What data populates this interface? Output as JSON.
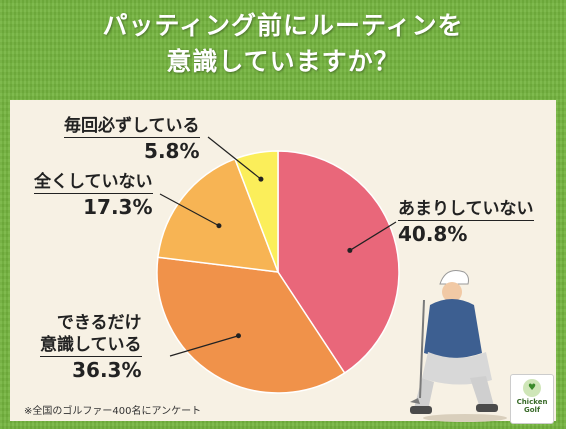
{
  "title_lines": [
    "パッティング前にルーティンを",
    "意識していますか？"
  ],
  "footnote": "※全国のゴルファー400名にアンケート",
  "logo": {
    "icon": "heart-sprout-icon",
    "line1": "Chicken",
    "line2": "Golf"
  },
  "chart_data": {
    "type": "pie",
    "start": "12 o'clock, clockwise",
    "slices": [
      {
        "label": "あまりしていない",
        "value": 40.8,
        "value_text": "40.8%",
        "color": "#e9677a"
      },
      {
        "label": "できるだけ意識している",
        "label_lines": [
          "できるだけ",
          "意識している"
        ],
        "value": 36.3,
        "value_text": "36.3%",
        "color": "#f0924a"
      },
      {
        "label": "全くしていない",
        "value": 17.3,
        "value_text": "17.3%",
        "color": "#f7b454"
      },
      {
        "label": "毎回必ずしている",
        "value": 5.8,
        "value_text": "5.8%",
        "color": "#fbee5a"
      }
    ]
  }
}
